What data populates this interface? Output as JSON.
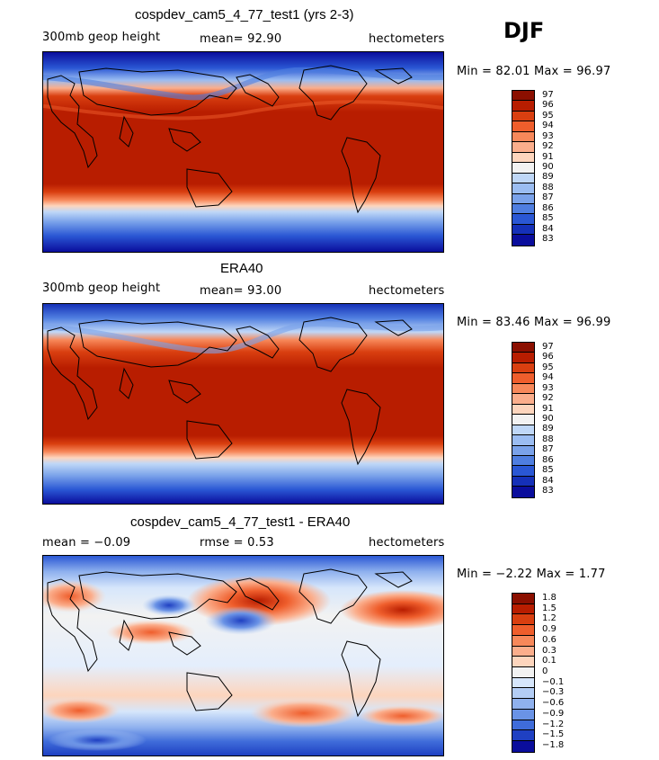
{
  "season": "DJF",
  "panels": [
    {
      "title": "cospdev_cam5_4_77_test1 (yrs 2-3)",
      "left_text": "300mb geop height",
      "center_text": "mean=  92.90",
      "units": "hectometers",
      "minmax": "Min =  82.01 Max =  96.97",
      "type": "field",
      "colorbar_labels": [
        "97",
        "96",
        "95",
        "94",
        "93",
        "92",
        "91",
        "90",
        "89",
        "88",
        "87",
        "86",
        "85",
        "84",
        "83"
      ],
      "colors": [
        "#8b0f00",
        "#b81d00",
        "#d93f10",
        "#ef5e2c",
        "#f7885a",
        "#fbae8c",
        "#fdd5bd",
        "#f2f2f2",
        "#bfd7f7",
        "#9bbdf2",
        "#7aa2ea",
        "#4f7ee0",
        "#2a57d4",
        "#1530b8",
        "#0a0d9c"
      ]
    },
    {
      "title": "ERA40",
      "left_text": "300mb geop height",
      "center_text": "mean=  93.00",
      "units": "hectometers",
      "minmax": "Min =  83.46 Max =  96.99",
      "type": "field",
      "colorbar_labels": [
        "97",
        "96",
        "95",
        "94",
        "93",
        "92",
        "91",
        "90",
        "89",
        "88",
        "87",
        "86",
        "85",
        "84",
        "83"
      ],
      "colors": [
        "#8b0f00",
        "#b81d00",
        "#d93f10",
        "#ef5e2c",
        "#f7885a",
        "#fbae8c",
        "#fdd5bd",
        "#f2f2f2",
        "#bfd7f7",
        "#9bbdf2",
        "#7aa2ea",
        "#4f7ee0",
        "#2a57d4",
        "#1530b8",
        "#0a0d9c"
      ]
    },
    {
      "title": "cospdev_cam5_4_77_test1 - ERA40",
      "left_text": "mean =  −0.09",
      "center_text": "rmse =   0.53",
      "units": "hectometers",
      "minmax": "Min =  −2.22 Max =   1.77",
      "type": "diff",
      "colorbar_labels": [
        "1.8",
        "1.5",
        "1.2",
        "0.9",
        "0.6",
        "0.3",
        "0.1",
        "0",
        "−0.1",
        "−0.3",
        "−0.6",
        "−0.9",
        "−1.2",
        "−1.5",
        "−1.8"
      ],
      "colors": [
        "#8b0f00",
        "#b81d00",
        "#d93f10",
        "#ef5e2c",
        "#f7885a",
        "#fbae8c",
        "#fdd5bd",
        "#f2f2f2",
        "#d6e6fb",
        "#b3cdf5",
        "#8fb1ee",
        "#6a93e6",
        "#3f6cda",
        "#1f40c2",
        "#0a0d9c"
      ]
    }
  ]
}
